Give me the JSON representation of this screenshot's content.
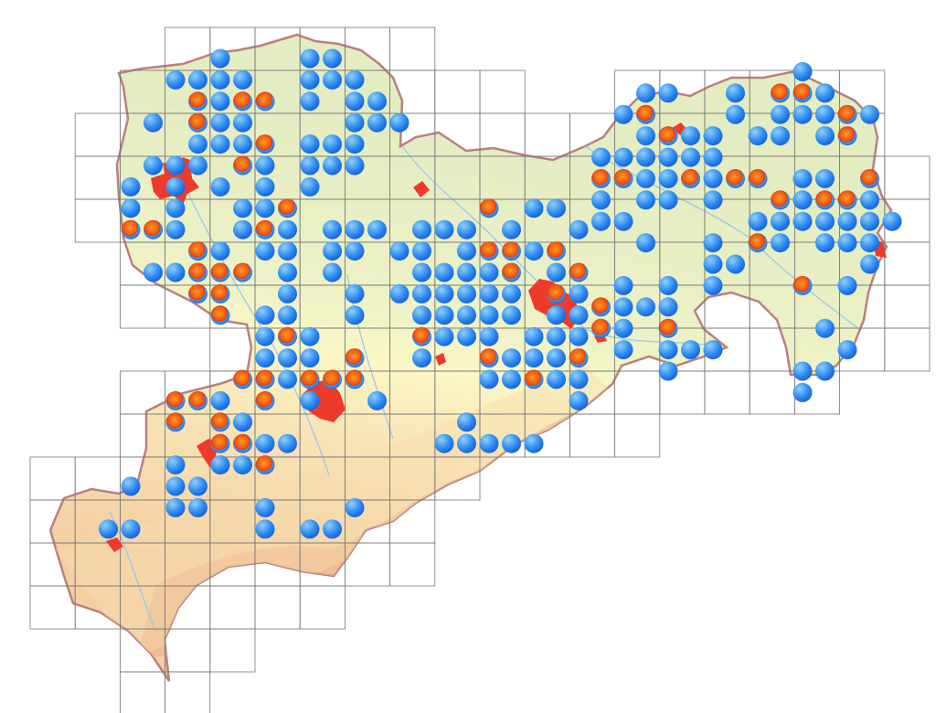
{
  "map": {
    "type": "grid distribution map",
    "colors": {
      "lowland": "#e4ecc2",
      "hills": "#fbf7c6",
      "upland": "#f7dcae",
      "mountains": "#eeb48c",
      "border": "#b98080",
      "rivers": "#9cc8e8",
      "cities": "#ee3a2a",
      "grid": "#777777",
      "record_recent": "#1f78e6",
      "record_older": "#f05a14"
    },
    "legend": "none",
    "records": [
      [
        4,
        0,
        "b"
      ],
      [
        8,
        0,
        "b"
      ],
      [
        9,
        0,
        "b"
      ],
      [
        2,
        1,
        "b"
      ],
      [
        3,
        1,
        "b"
      ],
      [
        4,
        1,
        "b"
      ],
      [
        5,
        1,
        "b"
      ],
      [
        8,
        1,
        "b"
      ],
      [
        9,
        1,
        "b"
      ],
      [
        10,
        1,
        "b"
      ],
      [
        3,
        2,
        "r"
      ],
      [
        4,
        2,
        "b"
      ],
      [
        5,
        2,
        "r"
      ],
      [
        6,
        2,
        "r"
      ],
      [
        8,
        2,
        "b"
      ],
      [
        10,
        2,
        "b"
      ],
      [
        11,
        2,
        "b"
      ],
      [
        1,
        3,
        "b"
      ],
      [
        3,
        3,
        "r"
      ],
      [
        4,
        3,
        "b"
      ],
      [
        5,
        3,
        "b"
      ],
      [
        10,
        3,
        "b"
      ],
      [
        11,
        3,
        "b"
      ],
      [
        12,
        3,
        "b"
      ],
      [
        3,
        4,
        "b"
      ],
      [
        4,
        4,
        "b"
      ],
      [
        5,
        4,
        "b"
      ],
      [
        6,
        4,
        "r"
      ],
      [
        8,
        4,
        "b"
      ],
      [
        9,
        4,
        "b"
      ],
      [
        10,
        4,
        "b"
      ],
      [
        1,
        5,
        "b"
      ],
      [
        2,
        5,
        "b"
      ],
      [
        3,
        5,
        "b"
      ],
      [
        5,
        5,
        "r"
      ],
      [
        6,
        5,
        "b"
      ],
      [
        8,
        5,
        "b"
      ],
      [
        9,
        5,
        "b"
      ],
      [
        10,
        5,
        "b"
      ],
      [
        0,
        6,
        "b"
      ],
      [
        2,
        6,
        "b"
      ],
      [
        4,
        6,
        "b"
      ],
      [
        6,
        6,
        "b"
      ],
      [
        8,
        6,
        "b"
      ],
      [
        0,
        7,
        "b"
      ],
      [
        2,
        7,
        "b"
      ],
      [
        5,
        7,
        "b"
      ],
      [
        6,
        7,
        "b"
      ],
      [
        7,
        7,
        "r"
      ],
      [
        16,
        7,
        "r"
      ],
      [
        18,
        7,
        "b"
      ],
      [
        19,
        7,
        "b"
      ],
      [
        0,
        8,
        "r"
      ],
      [
        1,
        8,
        "r"
      ],
      [
        2,
        8,
        "b"
      ],
      [
        5,
        8,
        "b"
      ],
      [
        6,
        8,
        "r"
      ],
      [
        7,
        8,
        "b"
      ],
      [
        9,
        8,
        "b"
      ],
      [
        10,
        8,
        "b"
      ],
      [
        11,
        8,
        "b"
      ],
      [
        13,
        8,
        "b"
      ],
      [
        14,
        8,
        "b"
      ],
      [
        15,
        8,
        "b"
      ],
      [
        17,
        8,
        "b"
      ],
      [
        20,
        8,
        "b"
      ],
      [
        3,
        9,
        "r"
      ],
      [
        4,
        9,
        "b"
      ],
      [
        6,
        9,
        "b"
      ],
      [
        7,
        9,
        "b"
      ],
      [
        9,
        9,
        "b"
      ],
      [
        10,
        9,
        "b"
      ],
      [
        12,
        9,
        "b"
      ],
      [
        13,
        9,
        "b"
      ],
      [
        15,
        9,
        "b"
      ],
      [
        16,
        9,
        "r"
      ],
      [
        17,
        9,
        "r"
      ],
      [
        18,
        9,
        "b"
      ],
      [
        19,
        9,
        "r"
      ],
      [
        1,
        10,
        "b"
      ],
      [
        2,
        10,
        "b"
      ],
      [
        3,
        10,
        "r"
      ],
      [
        4,
        10,
        "r"
      ],
      [
        5,
        10,
        "r"
      ],
      [
        7,
        10,
        "b"
      ],
      [
        9,
        10,
        "b"
      ],
      [
        13,
        10,
        "b"
      ],
      [
        14,
        10,
        "b"
      ],
      [
        15,
        10,
        "b"
      ],
      [
        16,
        10,
        "b"
      ],
      [
        17,
        10,
        "r"
      ],
      [
        19,
        10,
        "b"
      ],
      [
        20,
        10,
        "r"
      ],
      [
        3,
        11,
        "r"
      ],
      [
        4,
        11,
        "r"
      ],
      [
        7,
        11,
        "b"
      ],
      [
        10,
        11,
        "b"
      ],
      [
        12,
        11,
        "b"
      ],
      [
        13,
        11,
        "b"
      ],
      [
        14,
        11,
        "b"
      ],
      [
        15,
        11,
        "b"
      ],
      [
        16,
        11,
        "b"
      ],
      [
        17,
        11,
        "b"
      ],
      [
        19,
        11,
        "r"
      ],
      [
        20,
        11,
        "b"
      ],
      [
        4,
        12,
        "r"
      ],
      [
        6,
        12,
        "b"
      ],
      [
        7,
        12,
        "b"
      ],
      [
        10,
        12,
        "b"
      ],
      [
        13,
        12,
        "b"
      ],
      [
        14,
        12,
        "b"
      ],
      [
        15,
        12,
        "b"
      ],
      [
        16,
        12,
        "b"
      ],
      [
        17,
        12,
        "b"
      ],
      [
        19,
        12,
        "b"
      ],
      [
        20,
        12,
        "b"
      ],
      [
        6,
        13,
        "b"
      ],
      [
        7,
        13,
        "r"
      ],
      [
        8,
        13,
        "b"
      ],
      [
        13,
        13,
        "r"
      ],
      [
        14,
        13,
        "b"
      ],
      [
        15,
        13,
        "b"
      ],
      [
        16,
        13,
        "b"
      ],
      [
        18,
        13,
        "b"
      ],
      [
        19,
        13,
        "b"
      ],
      [
        20,
        13,
        "b"
      ],
      [
        6,
        14,
        "b"
      ],
      [
        7,
        14,
        "b"
      ],
      [
        8,
        14,
        "b"
      ],
      [
        10,
        14,
        "r"
      ],
      [
        13,
        14,
        "b"
      ],
      [
        16,
        14,
        "r"
      ],
      [
        17,
        14,
        "b"
      ],
      [
        18,
        14,
        "b"
      ],
      [
        19,
        14,
        "b"
      ],
      [
        20,
        14,
        "r"
      ],
      [
        5,
        15,
        "r"
      ],
      [
        6,
        15,
        "r"
      ],
      [
        7,
        15,
        "b"
      ],
      [
        8,
        15,
        "r"
      ],
      [
        9,
        15,
        "r"
      ],
      [
        10,
        15,
        "r"
      ],
      [
        16,
        15,
        "b"
      ],
      [
        17,
        15,
        "b"
      ],
      [
        18,
        15,
        "r"
      ],
      [
        19,
        15,
        "b"
      ],
      [
        20,
        15,
        "b"
      ],
      [
        2,
        16,
        "r"
      ],
      [
        3,
        16,
        "r"
      ],
      [
        4,
        16,
        "b"
      ],
      [
        6,
        16,
        "r"
      ],
      [
        8,
        16,
        "b"
      ],
      [
        11,
        16,
        "b"
      ],
      [
        20,
        16,
        "b"
      ],
      [
        2,
        17,
        "r"
      ],
      [
        4,
        17,
        "r"
      ],
      [
        5,
        17,
        "b"
      ],
      [
        15,
        17,
        "b"
      ],
      [
        4,
        18,
        "r"
      ],
      [
        5,
        18,
        "r"
      ],
      [
        6,
        18,
        "b"
      ],
      [
        7,
        18,
        "b"
      ],
      [
        14,
        18,
        "b"
      ],
      [
        15,
        18,
        "b"
      ],
      [
        16,
        18,
        "b"
      ],
      [
        17,
        18,
        "b"
      ],
      [
        18,
        18,
        "b"
      ],
      [
        2,
        19,
        "b"
      ],
      [
        4,
        19,
        "b"
      ],
      [
        5,
        19,
        "b"
      ],
      [
        6,
        19,
        "r"
      ],
      [
        0,
        20,
        "b"
      ],
      [
        2,
        20,
        "b"
      ],
      [
        3,
        20,
        "b"
      ],
      [
        2,
        21,
        "b"
      ],
      [
        3,
        21,
        "b"
      ],
      [
        6,
        21,
        "b"
      ],
      [
        10,
        21,
        "b"
      ],
      [
        -1,
        22,
        "b"
      ],
      [
        0,
        22,
        "b"
      ],
      [
        6,
        22,
        "b"
      ],
      [
        8,
        22,
        "b"
      ],
      [
        9,
        22,
        "b"
      ],
      [
        30,
        1,
        "b"
      ],
      [
        23,
        2,
        "b"
      ],
      [
        24,
        2,
        "b"
      ],
      [
        27,
        2,
        "b"
      ],
      [
        29,
        2,
        "r"
      ],
      [
        30,
        2,
        "r"
      ],
      [
        31,
        2,
        "b"
      ],
      [
        22,
        3,
        "b"
      ],
      [
        23,
        3,
        "r"
      ],
      [
        27,
        3,
        "b"
      ],
      [
        29,
        3,
        "b"
      ],
      [
        30,
        3,
        "b"
      ],
      [
        31,
        3,
        "b"
      ],
      [
        32,
        3,
        "r"
      ],
      [
        33,
        3,
        "b"
      ],
      [
        23,
        4,
        "b"
      ],
      [
        24,
        4,
        "r"
      ],
      [
        25,
        4,
        "b"
      ],
      [
        26,
        4,
        "b"
      ],
      [
        28,
        4,
        "b"
      ],
      [
        29,
        4,
        "b"
      ],
      [
        31,
        4,
        "b"
      ],
      [
        32,
        4,
        "r"
      ],
      [
        21,
        5,
        "b"
      ],
      [
        22,
        5,
        "b"
      ],
      [
        23,
        5,
        "b"
      ],
      [
        24,
        5,
        "b"
      ],
      [
        25,
        5,
        "b"
      ],
      [
        26,
        5,
        "b"
      ],
      [
        21,
        6,
        "r"
      ],
      [
        22,
        6,
        "r"
      ],
      [
        23,
        6,
        "b"
      ],
      [
        24,
        6,
        "b"
      ],
      [
        25,
        6,
        "r"
      ],
      [
        26,
        6,
        "b"
      ],
      [
        27,
        6,
        "r"
      ],
      [
        28,
        6,
        "r"
      ],
      [
        30,
        6,
        "b"
      ],
      [
        31,
        6,
        "b"
      ],
      [
        33,
        6,
        "r"
      ],
      [
        21,
        7,
        "b"
      ],
      [
        23,
        7,
        "b"
      ],
      [
        24,
        7,
        "b"
      ],
      [
        26,
        7,
        "b"
      ],
      [
        29,
        7,
        "r"
      ],
      [
        30,
        7,
        "b"
      ],
      [
        31,
        7,
        "r"
      ],
      [
        32,
        7,
        "r"
      ],
      [
        33,
        7,
        "b"
      ],
      [
        21,
        8,
        "b"
      ],
      [
        22,
        8,
        "b"
      ],
      [
        28,
        8,
        "b"
      ],
      [
        29,
        8,
        "b"
      ],
      [
        30,
        8,
        "b"
      ],
      [
        31,
        8,
        "b"
      ],
      [
        32,
        8,
        "b"
      ],
      [
        33,
        8,
        "b"
      ],
      [
        34,
        8,
        "b"
      ],
      [
        23,
        9,
        "b"
      ],
      [
        26,
        9,
        "b"
      ],
      [
        28,
        9,
        "r"
      ],
      [
        29,
        9,
        "b"
      ],
      [
        31,
        9,
        "b"
      ],
      [
        32,
        9,
        "b"
      ],
      [
        33,
        9,
        "b"
      ],
      [
        26,
        10,
        "b"
      ],
      [
        27,
        10,
        "b"
      ],
      [
        33,
        10,
        "b"
      ],
      [
        22,
        11,
        "b"
      ],
      [
        24,
        11,
        "b"
      ],
      [
        26,
        11,
        "b"
      ],
      [
        30,
        11,
        "r"
      ],
      [
        32,
        11,
        "b"
      ],
      [
        21,
        12,
        "r"
      ],
      [
        22,
        12,
        "b"
      ],
      [
        23,
        12,
        "b"
      ],
      [
        24,
        12,
        "b"
      ],
      [
        21,
        13,
        "r"
      ],
      [
        22,
        13,
        "b"
      ],
      [
        24,
        13,
        "r"
      ],
      [
        31,
        13,
        "b"
      ],
      [
        22,
        14,
        "b"
      ],
      [
        24,
        14,
        "b"
      ],
      [
        25,
        14,
        "b"
      ],
      [
        26,
        14,
        "b"
      ],
      [
        32,
        14,
        "b"
      ],
      [
        24,
        15,
        "b"
      ],
      [
        30,
        15,
        "b"
      ],
      [
        31,
        15,
        "b"
      ],
      [
        30,
        16,
        "b"
      ]
    ]
  }
}
